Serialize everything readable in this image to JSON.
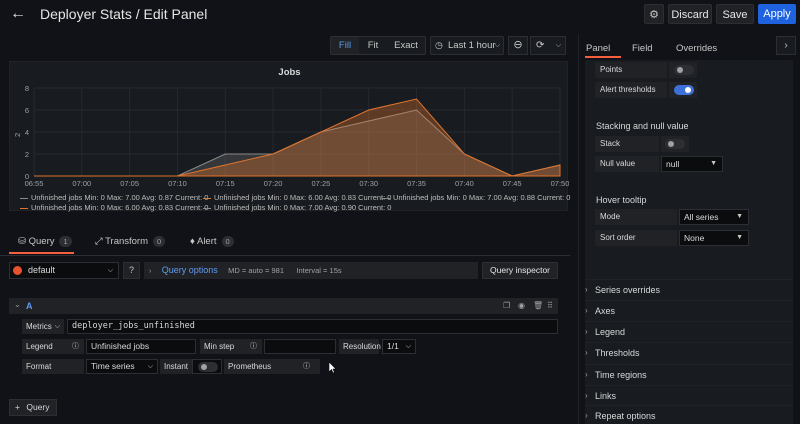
{
  "header": {
    "title": "Deployer Stats / Edit Panel",
    "discard_label": "Discard",
    "save_label": "Save",
    "apply_label": "Apply"
  },
  "toolbar": {
    "fill_label": "Fill",
    "fit_label": "Fit",
    "exact_label": "Exact",
    "time_range": "Last 1 hour"
  },
  "panel": {
    "title": "Jobs",
    "legend": [
      {
        "name": "Unfinished jobs",
        "stats": "Min: 0  Max: 7.00  Avg: 0.87  Current: 0",
        "color": "#8a8a8a"
      },
      {
        "name": "Unfinished jobs",
        "stats": "Min: 0  Max: 6.00  Avg: 0.83  Current: 0",
        "color": "#e0752d"
      },
      {
        "name": "Unfinished jobs",
        "stats": "Min: 0  Max: 7.00  Avg: 0.88  Current: 0",
        "color": "#8a8a8a"
      },
      {
        "name": "Unfinished jobs",
        "stats": "Min: 0  Max: 6.00  Avg: 0.83  Current: 0",
        "color": "#e0752d"
      },
      {
        "name": "Unfinished jobs",
        "stats": "Min: 0  Max: 7.00  Avg: 0.90  Current: 0",
        "color": "#8a8a8a"
      }
    ]
  },
  "chart_data": {
    "type": "area",
    "title": "Jobs",
    "xlabel": "",
    "ylabel": "",
    "ylim": [
      0,
      8
    ],
    "yticks": [
      "0",
      "2",
      "4",
      "6",
      "8"
    ],
    "y_axis_side_label": "2",
    "x": [
      "06:55",
      "07:00",
      "07:05",
      "07:10",
      "07:15",
      "07:20",
      "07:25",
      "07:30",
      "07:35",
      "07:40",
      "07:45",
      "07:50"
    ],
    "series": [
      {
        "values": [
          0,
          0,
          0,
          0,
          2,
          2,
          4,
          5,
          6,
          2,
          0,
          1
        ]
      },
      {
        "values": [
          0,
          0,
          0,
          0,
          1,
          2,
          4,
          6,
          7,
          2,
          0,
          1
        ]
      }
    ]
  },
  "query_tabs": [
    {
      "label": "Query",
      "count": "1"
    },
    {
      "label": "Transform",
      "count": "0"
    },
    {
      "label": "Alert",
      "count": "0"
    }
  ],
  "datasource": {
    "name": "default",
    "query_options_label": "Query options",
    "md": "MD = auto = 981",
    "interval": "Interval = 15s",
    "inspector_label": "Query inspector"
  },
  "query": {
    "letter": "A",
    "metrics_label": "Metrics",
    "metrics_value": "deployer_jobs_unfinished",
    "legend_label": "Legend",
    "legend_value": "Unfinished jobs",
    "minstep_label": "Min step",
    "minstep_value": "",
    "resolution_label": "Resolution",
    "resolution_value": "1/1",
    "format_label": "Format",
    "format_value": "Time series",
    "instant_label": "Instant",
    "prometheus_label": "Prometheus"
  },
  "add_query_label": "Query",
  "options": {
    "tabs": [
      "Panel",
      "Field",
      "Overrides"
    ],
    "points_label": "Points",
    "alert_thresholds_label": "Alert thresholds",
    "stacking_title": "Stacking and null value",
    "stack_label": "Stack",
    "null_value_label": "Null value",
    "null_value": "null",
    "hover_title": "Hover tooltip",
    "mode_label": "Mode",
    "mode_value": "All series",
    "sort_label": "Sort order",
    "sort_value": "None",
    "sections": [
      "Series overrides",
      "Axes",
      "Legend",
      "Thresholds",
      "Time regions",
      "Links",
      "Repeat options"
    ]
  },
  "colors": {
    "accent": "#1f62e0",
    "tab_underline": "#f55f3e",
    "series_fill": "#e0752d"
  }
}
